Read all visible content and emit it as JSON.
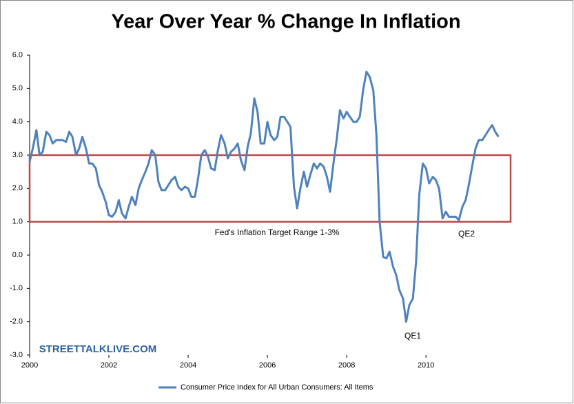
{
  "chart_data": {
    "type": "line",
    "title": "Year Over Year % Change In Inflation",
    "x": [
      2000.0,
      2000.08,
      2000.17,
      2000.25,
      2000.33,
      2000.42,
      2000.5,
      2000.58,
      2000.67,
      2000.75,
      2000.83,
      2000.92,
      2001.0,
      2001.08,
      2001.17,
      2001.25,
      2001.33,
      2001.42,
      2001.5,
      2001.58,
      2001.67,
      2001.75,
      2001.83,
      2001.92,
      2002.0,
      2002.08,
      2002.17,
      2002.25,
      2002.33,
      2002.42,
      2002.5,
      2002.58,
      2002.67,
      2002.75,
      2002.83,
      2002.92,
      2003.0,
      2003.08,
      2003.17,
      2003.25,
      2003.33,
      2003.42,
      2003.5,
      2003.58,
      2003.67,
      2003.75,
      2003.83,
      2003.92,
      2004.0,
      2004.08,
      2004.17,
      2004.25,
      2004.33,
      2004.42,
      2004.5,
      2004.58,
      2004.67,
      2004.75,
      2004.83,
      2004.92,
      2005.0,
      2005.08,
      2005.17,
      2005.25,
      2005.33,
      2005.42,
      2005.5,
      2005.58,
      2005.67,
      2005.75,
      2005.83,
      2005.92,
      2006.0,
      2006.08,
      2006.17,
      2006.25,
      2006.33,
      2006.42,
      2006.5,
      2006.58,
      2006.67,
      2006.75,
      2006.83,
      2006.92,
      2007.0,
      2007.08,
      2007.17,
      2007.25,
      2007.33,
      2007.42,
      2007.5,
      2007.58,
      2007.67,
      2007.75,
      2007.83,
      2007.92,
      2008.0,
      2008.08,
      2008.17,
      2008.25,
      2008.33,
      2008.42,
      2008.5,
      2008.58,
      2008.67,
      2008.75,
      2008.83,
      2008.92,
      2009.0,
      2009.08,
      2009.17,
      2009.25,
      2009.33,
      2009.42,
      2009.5,
      2009.58,
      2009.67,
      2009.75,
      2009.83,
      2009.92,
      2010.0,
      2010.08,
      2010.17,
      2010.25,
      2010.33,
      2010.42,
      2010.5,
      2010.58,
      2010.67,
      2010.75,
      2010.83,
      2010.92,
      2011.0,
      2011.08,
      2011.17,
      2011.25,
      2011.33,
      2011.42,
      2011.5,
      2011.58,
      2011.67,
      2011.75,
      2011.83
    ],
    "series": [
      {
        "name": "Consumer Price Index for All Urban Consumers: All Items",
        "color": "#4f81bd",
        "values": [
          2.8,
          3.2,
          3.75,
          3.0,
          3.1,
          3.7,
          3.6,
          3.35,
          3.45,
          3.45,
          3.45,
          3.4,
          3.7,
          3.55,
          3.0,
          3.2,
          3.55,
          3.2,
          2.75,
          2.75,
          2.6,
          2.1,
          1.9,
          1.6,
          1.2,
          1.15,
          1.3,
          1.65,
          1.25,
          1.1,
          1.45,
          1.75,
          1.5,
          2.0,
          2.25,
          2.5,
          2.75,
          3.15,
          3.0,
          2.2,
          1.95,
          1.95,
          2.1,
          2.25,
          2.35,
          2.05,
          1.95,
          2.05,
          2.0,
          1.75,
          1.75,
          2.3,
          3.0,
          3.15,
          2.95,
          2.6,
          2.55,
          3.15,
          3.6,
          3.35,
          2.9,
          3.1,
          3.2,
          3.35,
          2.85,
          2.55,
          3.25,
          3.65,
          4.7,
          4.3,
          3.35,
          3.35,
          4.0,
          3.6,
          3.45,
          3.55,
          4.15,
          4.15,
          4.0,
          3.85,
          2.05,
          1.4,
          2.0,
          2.5,
          2.05,
          2.4,
          2.75,
          2.6,
          2.75,
          2.65,
          2.35,
          1.9,
          2.8,
          3.5,
          4.35,
          4.1,
          4.3,
          4.15,
          4.0,
          4.0,
          4.15,
          5.0,
          5.5,
          5.35,
          4.95,
          3.6,
          1.0,
          -0.05,
          -0.1,
          0.1,
          -0.35,
          -0.6,
          -1.05,
          -1.3,
          -2.0,
          -1.5,
          -1.3,
          -0.2,
          1.8,
          2.75,
          2.6,
          2.15,
          2.35,
          2.25,
          2.0,
          1.1,
          1.3,
          1.15,
          1.15,
          1.15,
          1.05,
          1.45,
          1.65,
          2.1,
          2.7,
          3.2,
          3.45,
          3.45,
          3.6,
          3.75,
          3.9,
          3.7,
          3.55
        ]
      }
    ],
    "xlim": [
      2000,
      2012.17
    ],
    "xticks": [
      2000,
      2002,
      2004,
      2006,
      2008,
      2010
    ],
    "ylim": [
      -3,
      6
    ],
    "yticks": [
      {
        "value": -3,
        "label": "-3.0"
      },
      {
        "value": -2,
        "label": "-2.0"
      },
      {
        "value": -1,
        "label": "-1.0"
      },
      {
        "value": 0,
        "label": "0.0"
      },
      {
        "value": 1,
        "label": "1.0"
      },
      {
        "value": 2,
        "label": "2.0"
      },
      {
        "value": 3,
        "label": "3.0"
      },
      {
        "value": 4,
        "label": "4.0"
      },
      {
        "value": 5,
        "label": "5.0"
      },
      {
        "value": 6,
        "label": "6.0"
      }
    ],
    "target_range": [
      1,
      3
    ],
    "target_color": "#b94a48",
    "annotations": [
      "Fed's Inflation Target Range 1-3%",
      "QE1",
      "QE2",
      "STREETTALKLIVE.COM"
    ],
    "legend": "bottom"
  }
}
